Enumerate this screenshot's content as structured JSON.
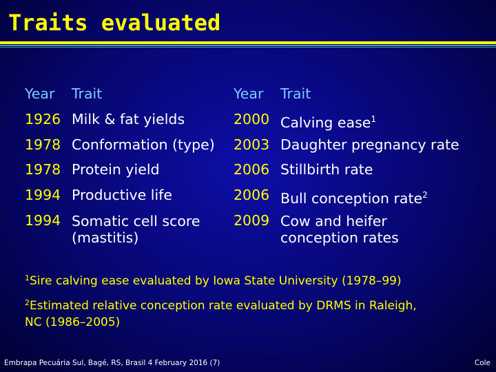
{
  "title": "Traits evaluated",
  "table": {
    "left": {
      "header_year": "Year",
      "header_trait": "Trait",
      "rows": [
        {
          "year": "1926",
          "trait": "Milk & fat yields"
        },
        {
          "year": "1978",
          "trait": "Conformation (type)"
        },
        {
          "year": "1978",
          "trait": "Protein yield"
        },
        {
          "year": "1994",
          "trait": "Productive life"
        },
        {
          "year": "1994",
          "trait": "Somatic cell score",
          "trait_line2": "(mastitis)"
        }
      ]
    },
    "right": {
      "header_year": "Year",
      "header_trait": "Trait",
      "rows": [
        {
          "year": "2000",
          "trait": "Calving ease",
          "sup": "1"
        },
        {
          "year": "2003",
          "trait": "Daughter pregnancy rate"
        },
        {
          "year": "2006",
          "trait": "Stillbirth rate"
        },
        {
          "year": "2006",
          "trait": "Bull conception rate",
          "sup": "2"
        },
        {
          "year": "2009",
          "trait": "Cow and heifer",
          "trait_line2": "conception rates"
        }
      ]
    }
  },
  "footnotes": [
    {
      "marker": "1",
      "text": "Sire calving ease evaluated by Iowa State University (1978–99)"
    },
    {
      "marker": "2",
      "text": "Estimated relative conception rate evaluated by DRMS in Raleigh,",
      "text_line2": "NC (1986–2005)"
    }
  ],
  "footer": {
    "left": "Embrapa Pecuária Sul, Bagé, RS, Brasil 4 February 2016 (7)",
    "right": "Cole"
  },
  "colors": {
    "title": "#ffff00",
    "header": "#7ec8ff",
    "year": "#ffff00",
    "body_text": "#ffffff",
    "background": "#06066f"
  }
}
